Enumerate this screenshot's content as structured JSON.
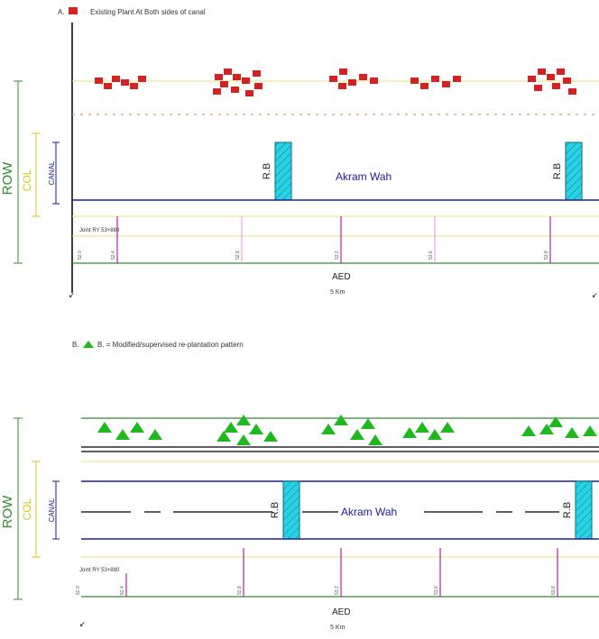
{
  "colors": {
    "canal": "#1d1d9e",
    "row": "#2f8f2f",
    "col": "#d8c81a",
    "rb_fill": "#29d3e6",
    "plant_red": "#d22222",
    "plant_green": "#1fb81f",
    "magenta": "#b020b0",
    "pink": "#e890e0"
  },
  "panel1": {
    "legend": "Existing Plant At Both sides of canal",
    "row_label": "ROW",
    "col_label": "COL",
    "canal_label": "CANAL",
    "canal_name": "Akram Wah",
    "rb_label": "R.B",
    "rd_label": "Joint RY 53+880",
    "chainages": [
      "52.0",
      "52.4",
      "52.8",
      "53.2",
      "53.6",
      "53.8"
    ],
    "aed": "AED",
    "length": "5 Km"
  },
  "panel2": {
    "legend": "B. = Modified/supervised re-plantation pattern",
    "row_label": "ROW",
    "col_label": "COL",
    "canal_label": "CANAL",
    "canal_name": "Akram Wah",
    "rb_label": "R.B",
    "rd_label": "Joint RY 53+880",
    "chainages": [
      "52.0",
      "52.4",
      "52.8",
      "53.2",
      "53.6",
      "53.8"
    ],
    "aed": "AED",
    "length": "5 Km"
  }
}
